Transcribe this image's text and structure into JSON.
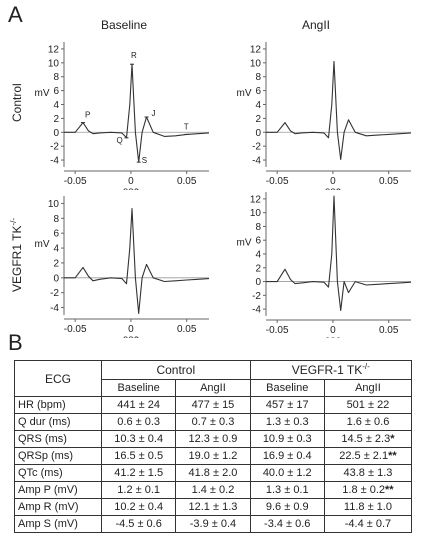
{
  "panel_a": "A",
  "panel_b": "B",
  "col_titles": [
    "Baseline",
    "AngII"
  ],
  "row_titles": [
    "Control",
    "VEGFR1 TK"
  ],
  "row_title_sup": "-/-",
  "mv_label": "mV",
  "sec_label": "sec",
  "wave_labels": {
    "P": "P",
    "Q": "Q",
    "R": "R",
    "S": "S",
    "J": "J",
    "T": "T"
  },
  "plots": [
    {
      "name": "control-baseline",
      "yticks": [
        "12",
        "10",
        "8",
        "6",
        "4",
        "2",
        "0",
        "-2",
        "-4"
      ],
      "xticks": [
        "-0.05",
        "0",
        "0.05"
      ]
    },
    {
      "name": "control-angii",
      "yticks": [
        "12",
        "10",
        "8",
        "6",
        "4",
        "2",
        "0",
        "-2",
        "-4"
      ],
      "xticks": [
        "-0.05",
        "0",
        "0.05"
      ]
    },
    {
      "name": "vegfr1-baseline",
      "yticks": [
        "10",
        "8",
        "6",
        "4",
        "2",
        "0",
        "-2",
        "-4"
      ],
      "xticks": [
        "-0.05",
        "0",
        "0.05"
      ]
    },
    {
      "name": "vegfr1-angii",
      "yticks": [
        "12",
        "10",
        "8",
        "6",
        "4",
        "2",
        "0",
        "-2",
        "-4"
      ],
      "xticks": [
        "-0.05",
        "0",
        "0.05"
      ]
    }
  ],
  "chart_data": [
    {
      "type": "line",
      "x": [
        -0.06,
        -0.05,
        -0.043,
        -0.038,
        -0.034,
        -0.028,
        -0.018,
        -0.008,
        -0.004,
        -0.001,
        0.001,
        0.004,
        0.007,
        0.01,
        0.014,
        0.02,
        0.03,
        0.04,
        0.05,
        0.06,
        0.07
      ],
      "y": [
        0,
        0,
        1.4,
        0.2,
        -0.2,
        -0.1,
        0,
        -0.1,
        -0.8,
        4,
        9.8,
        0,
        -4.3,
        0,
        2.2,
        0,
        -0.6,
        -0.5,
        -0.3,
        -0.2,
        -0.1
      ],
      "xlim": [
        -0.06,
        0.07
      ],
      "ylim": [
        -5,
        13
      ],
      "ylabel": "mV",
      "xlabel": "sec"
    },
    {
      "type": "line",
      "x": [
        -0.06,
        -0.05,
        -0.043,
        -0.038,
        -0.034,
        -0.028,
        -0.018,
        -0.008,
        -0.004,
        -0.001,
        0.001,
        0.004,
        0.007,
        0.01,
        0.014,
        0.02,
        0.03,
        0.04,
        0.05,
        0.06,
        0.07
      ],
      "y": [
        0,
        0,
        1.4,
        0.2,
        -0.2,
        -0.1,
        0,
        -0.1,
        -0.8,
        4,
        10.2,
        0,
        -3.9,
        0,
        1.8,
        0,
        -0.5,
        -0.4,
        -0.3,
        -0.2,
        -0.1
      ],
      "xlim": [
        -0.06,
        0.07
      ],
      "ylim": [
        -5,
        13
      ],
      "ylabel": "mV",
      "xlabel": "sec"
    },
    {
      "type": "line",
      "x": [
        -0.06,
        -0.05,
        -0.043,
        -0.038,
        -0.034,
        -0.028,
        -0.018,
        -0.008,
        -0.004,
        -0.001,
        0.001,
        0.004,
        0.007,
        0.01,
        0.014,
        0.02,
        0.03,
        0.04,
        0.05,
        0.06,
        0.07
      ],
      "y": [
        0,
        0,
        1.4,
        0.2,
        -0.4,
        -0.2,
        0,
        -0.1,
        -0.8,
        4,
        9.3,
        0,
        -4.8,
        0,
        1.8,
        0,
        -0.5,
        -0.4,
        -0.3,
        -0.2,
        -0.1
      ],
      "xlim": [
        -0.06,
        0.07
      ],
      "ylim": [
        -5,
        11
      ],
      "ylabel": "mV",
      "xlabel": "sec"
    },
    {
      "type": "line",
      "x": [
        -0.06,
        -0.05,
        -0.043,
        -0.038,
        -0.034,
        -0.028,
        -0.018,
        -0.008,
        -0.004,
        -0.001,
        0.001,
        0.004,
        0.007,
        0.01,
        0.014,
        0.02,
        0.03,
        0.04,
        0.05,
        0.06,
        0.07
      ],
      "y": [
        0,
        0,
        1.8,
        0.3,
        -0.3,
        -0.2,
        0,
        -0.1,
        -0.8,
        4,
        12.4,
        0,
        -4.2,
        0,
        -1.6,
        0,
        -0.5,
        -0.4,
        -0.3,
        -0.2,
        -0.1
      ],
      "xlim": [
        -0.06,
        0.07
      ],
      "ylim": [
        -5,
        13
      ],
      "ylabel": "mV",
      "xlabel": "sec"
    }
  ],
  "table": {
    "ecg_header": "ECG",
    "group_control": "Control",
    "group_vegfr": "VEGFR-1 TK",
    "group_vegfr_sup": "-/-",
    "sub_headers": [
      "Baseline",
      "AngII",
      "Baseline",
      "AngII"
    ],
    "rows": [
      {
        "label": "HR (bpm)",
        "cells": [
          "441 ± 24",
          "477 ± 15",
          "457 ± 17",
          "501 ± 22"
        ],
        "star": ""
      },
      {
        "label": "Q dur (ms)",
        "cells": [
          "0.6 ± 0.3",
          "0.7 ± 0.3",
          "1.3 ± 0.3",
          "1.6 ± 0.6"
        ],
        "star": ""
      },
      {
        "label": "QRS (ms)",
        "cells": [
          "10.3 ± 0.4",
          "12.3 ± 0.9",
          "10.9 ± 0.3",
          "14.5 ± 2.3"
        ],
        "star": "*"
      },
      {
        "label": "QRSp (ms)",
        "cells": [
          "16.5 ± 0.5",
          "19.0 ± 1.2",
          "16.9 ± 0.4",
          "22.5 ± 2.1"
        ],
        "star": "**"
      },
      {
        "label": "QTc (ms)",
        "cells": [
          "41.2 ± 1.5",
          "41.8 ± 2.0",
          "40.0 ± 1.2",
          "43.8 ± 1.3"
        ],
        "star": ""
      },
      {
        "label": "Amp P (mV)",
        "cells": [
          "1.2 ± 0.1",
          "1.4 ± 0.2",
          "1.3 ± 0.1",
          "1.8 ± 0.2"
        ],
        "star": "**"
      },
      {
        "label": "Amp R (mV)",
        "cells": [
          "10.2 ± 0.4",
          "12.1 ± 1.3",
          "9.6 ± 0.9",
          "11.8 ± 1.0"
        ],
        "star": ""
      },
      {
        "label": "Amp S (mV)",
        "cells": [
          "-4.5 ± 0.6",
          "-3.9 ± 0.4",
          "-3.4 ± 0.6",
          "-4.4 ± 0.7"
        ],
        "star": ""
      }
    ]
  }
}
